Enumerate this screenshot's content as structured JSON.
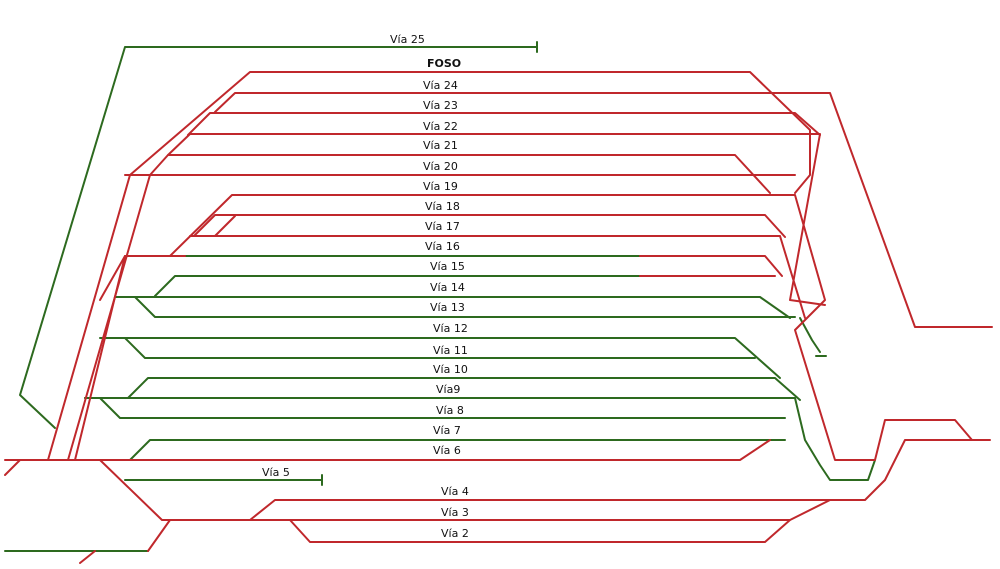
{
  "colors": {
    "electrified": "#c0282c",
    "non_electrified": "#2d6a1f",
    "background": "#ffffff"
  },
  "labels": {
    "via25": "Vía 25",
    "foso": "FOSO",
    "via24": "Vía 24",
    "via23": "Vía 23",
    "via22": "Vía 22",
    "via21": "Vía 21",
    "via20": "Vía 20",
    "via19": "Vía 19",
    "via18": "Vía 18",
    "via17": "Vía 17",
    "via16": "Vía 16",
    "via15": "Vía 15",
    "via14": "Vía 14",
    "via13": "Vía 13",
    "via12": "Vía 12",
    "via11": "Vía 11",
    "via10": "Vía 10",
    "via9": "Vía9",
    "via8": "Vía 8",
    "via7": "Vía 7",
    "via6": "Vía 6",
    "via5": "Vía 5",
    "via4": "Vía 4",
    "via3": "Vía 3",
    "via2": "Vía 2"
  }
}
